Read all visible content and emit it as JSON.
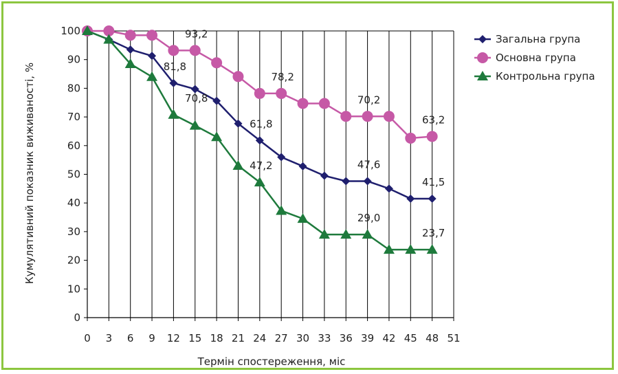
{
  "chart_data": {
    "type": "line",
    "xlabel": "Термін спостереження, міс",
    "ylabel": "Кумулятивний показник виживаності, %",
    "x_ticks": [
      "0",
      "3",
      "6",
      "9",
      "12",
      "15",
      "18",
      "21",
      "24",
      "27",
      "30",
      "33",
      "36",
      "39",
      "42",
      "45",
      "48",
      "51"
    ],
    "y_ticks": [
      "0",
      "10",
      "20",
      "30",
      "40",
      "50",
      "60",
      "70",
      "80",
      "90",
      "100"
    ],
    "xlim": [
      0,
      51
    ],
    "ylim": [
      0,
      100
    ],
    "grid": "vertical",
    "legend_position": "right",
    "x": [
      0,
      3,
      6,
      9,
      12,
      15,
      18,
      21,
      24,
      27,
      30,
      33,
      36,
      39,
      42,
      45,
      48
    ],
    "series": [
      {
        "name": "Загальна група",
        "color": "#1f1f6e",
        "marker": "diamond",
        "values": [
          100,
          97,
          93.5,
          91.3,
          81.8,
          79.7,
          75.6,
          67.7,
          61.8,
          56,
          52.8,
          49.5,
          47.6,
          47.6,
          45,
          41.5,
          41.5
        ]
      },
      {
        "name": "Основна група",
        "color": "#c659a6",
        "marker": "circle",
        "values": [
          100,
          100,
          98.5,
          98.5,
          93.2,
          93.2,
          88.9,
          84.1,
          78.2,
          78.2,
          74.7,
          74.7,
          70.2,
          70.2,
          70.2,
          62.6,
          63.2
        ]
      },
      {
        "name": "Контрольна група",
        "color": "#1e7a3c",
        "marker": "triangle",
        "values": [
          100,
          97,
          88.5,
          84,
          70.8,
          67,
          63,
          53,
          47.2,
          37.3,
          34.5,
          29,
          29,
          29,
          23.7,
          23.7,
          23.7
        ]
      }
    ],
    "data_labels": [
      {
        "text": "93,2",
        "x": 15,
        "y": 93.2,
        "series": 1
      },
      {
        "text": "81,8",
        "x": 12,
        "y": 81.8,
        "series": 0
      },
      {
        "text": "78,2",
        "x": 27,
        "y": 78.2,
        "series": 1
      },
      {
        "text": "70,8",
        "x": 15,
        "y": 70.8,
        "series": 2
      },
      {
        "text": "61,8",
        "x": 24,
        "y": 61.8,
        "series": 0
      },
      {
        "text": "47,2",
        "x": 24,
        "y": 47.2,
        "series": 2
      },
      {
        "text": "70,2",
        "x": 39,
        "y": 70.2,
        "series": 1
      },
      {
        "text": "47,6",
        "x": 39,
        "y": 47.6,
        "series": 0
      },
      {
        "text": "29,0",
        "x": 39,
        "y": 29.0,
        "series": 2
      },
      {
        "text": "63,2",
        "x": 48,
        "y": 63.2,
        "series": 1
      },
      {
        "text": "41,5",
        "x": 48,
        "y": 41.5,
        "series": 0
      },
      {
        "text": "23,7",
        "x": 48,
        "y": 23.7,
        "series": 2
      }
    ]
  }
}
